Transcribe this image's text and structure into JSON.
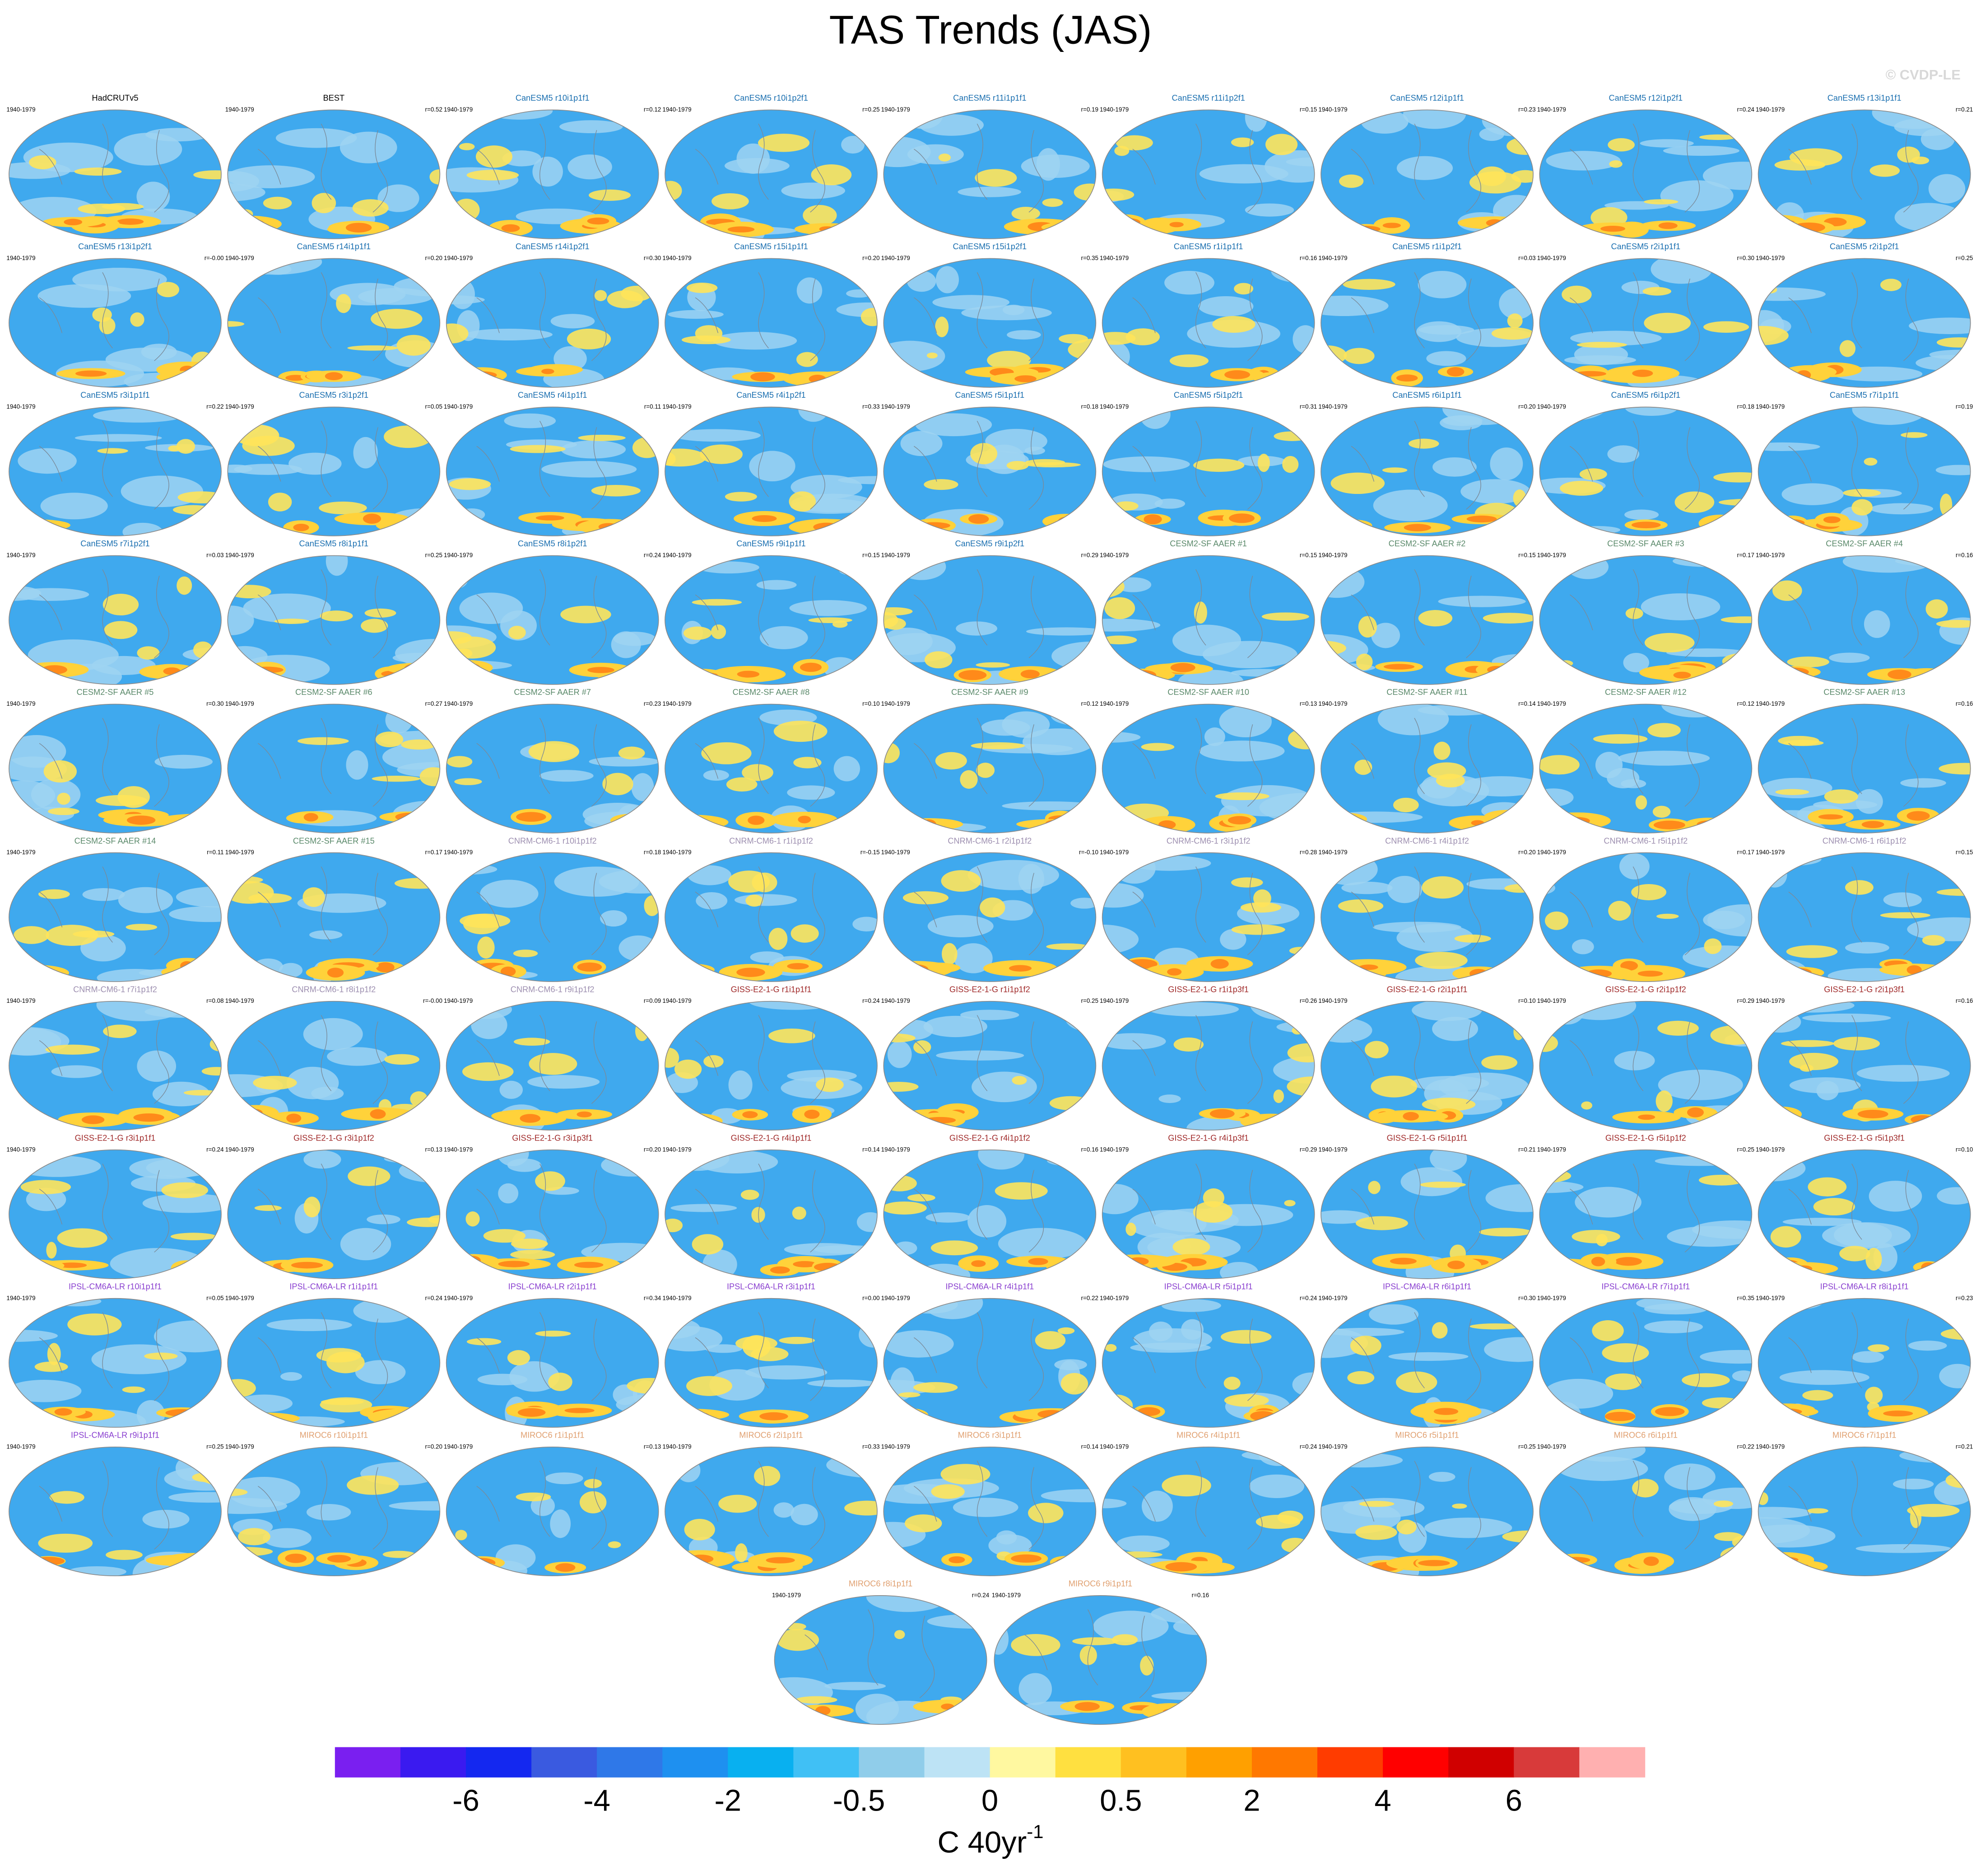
{
  "header": {
    "title": "TAS Trends (JAS)",
    "watermark": "© CVDP-LE"
  },
  "panels": [
    {
      "title": "HadCRUTv5",
      "period": "1940-1979",
      "color": "#000000"
    },
    {
      "title": "BEST",
      "period": "1940-1979",
      "r": "r=0.52",
      "color": "#000000"
    },
    {
      "title": "CanESM5 r10i1p1f1",
      "period": "1940-1979",
      "r": "r=0.12",
      "color": "#1a6fb0"
    },
    {
      "title": "CanESM5 r10i1p2f1",
      "period": "1940-1979",
      "r": "r=0.25",
      "color": "#1a6fb0"
    },
    {
      "title": "CanESM5 r11i1p1f1",
      "period": "1940-1979",
      "r": "r=0.19",
      "color": "#1a6fb0"
    },
    {
      "title": "CanESM5 r11i1p2f1",
      "period": "1940-1979",
      "r": "r=0.15",
      "color": "#1a6fb0"
    },
    {
      "title": "CanESM5 r12i1p1f1",
      "period": "1940-1979",
      "r": "r=0.23",
      "color": "#1a6fb0"
    },
    {
      "title": "CanESM5 r12i1p2f1",
      "period": "1940-1979",
      "r": "r=0.24",
      "color": "#1a6fb0"
    },
    {
      "title": "CanESM5 r13i1p1f1",
      "period": "1940-1979",
      "r": "r=0.21",
      "color": "#1a6fb0"
    },
    {
      "title": "CanESM5 r13i1p2f1",
      "period": "1940-1979",
      "r": "r=-0.00",
      "color": "#1a6fb0"
    },
    {
      "title": "CanESM5 r14i1p1f1",
      "period": "1940-1979",
      "r": "r=0.20",
      "color": "#1a6fb0"
    },
    {
      "title": "CanESM5 r14i1p2f1",
      "period": "1940-1979",
      "r": "r=0.30",
      "color": "#1a6fb0"
    },
    {
      "title": "CanESM5 r15i1p1f1",
      "period": "1940-1979",
      "r": "r=0.20",
      "color": "#1a6fb0"
    },
    {
      "title": "CanESM5 r15i1p2f1",
      "period": "1940-1979",
      "r": "r=0.35",
      "color": "#1a6fb0"
    },
    {
      "title": "CanESM5 r1i1p1f1",
      "period": "1940-1979",
      "r": "r=0.16",
      "color": "#1a6fb0"
    },
    {
      "title": "CanESM5 r1i1p2f1",
      "period": "1940-1979",
      "r": "r=0.03",
      "color": "#1a6fb0"
    },
    {
      "title": "CanESM5 r2i1p1f1",
      "period": "1940-1979",
      "r": "r=0.30",
      "color": "#1a6fb0"
    },
    {
      "title": "CanESM5 r2i1p2f1",
      "period": "1940-1979",
      "r": "r=0.25",
      "color": "#1a6fb0"
    },
    {
      "title": "CanESM5 r3i1p1f1",
      "period": "1940-1979",
      "r": "r=0.22",
      "color": "#1a6fb0"
    },
    {
      "title": "CanESM5 r3i1p2f1",
      "period": "1940-1979",
      "r": "r=0.05",
      "color": "#1a6fb0"
    },
    {
      "title": "CanESM5 r4i1p1f1",
      "period": "1940-1979",
      "r": "r=0.11",
      "color": "#1a6fb0"
    },
    {
      "title": "CanESM5 r4i1p2f1",
      "period": "1940-1979",
      "r": "r=0.33",
      "color": "#1a6fb0"
    },
    {
      "title": "CanESM5 r5i1p1f1",
      "period": "1940-1979",
      "r": "r=0.18",
      "color": "#1a6fb0"
    },
    {
      "title": "CanESM5 r5i1p2f1",
      "period": "1940-1979",
      "r": "r=0.31",
      "color": "#1a6fb0"
    },
    {
      "title": "CanESM5 r6i1p1f1",
      "period": "1940-1979",
      "r": "r=0.20",
      "color": "#1a6fb0"
    },
    {
      "title": "CanESM5 r6i1p2f1",
      "period": "1940-1979",
      "r": "r=0.18",
      "color": "#1a6fb0"
    },
    {
      "title": "CanESM5 r7i1p1f1",
      "period": "1940-1979",
      "r": "r=0.19",
      "color": "#1a6fb0"
    },
    {
      "title": "CanESM5 r7i1p2f1",
      "period": "1940-1979",
      "r": "r=0.03",
      "color": "#1a6fb0"
    },
    {
      "title": "CanESM5 r8i1p1f1",
      "period": "1940-1979",
      "r": "r=0.25",
      "color": "#1a6fb0"
    },
    {
      "title": "CanESM5 r8i1p2f1",
      "period": "1940-1979",
      "r": "r=0.24",
      "color": "#1a6fb0"
    },
    {
      "title": "CanESM5 r9i1p1f1",
      "period": "1940-1979",
      "r": "r=0.15",
      "color": "#1a6fb0"
    },
    {
      "title": "CanESM5 r9i1p2f1",
      "period": "1940-1979",
      "r": "r=0.29",
      "color": "#1a6fb0"
    },
    {
      "title": "CESM2-SF AAER #1",
      "period": "1940-1979",
      "r": "r=0.15",
      "color": "#5b8a6b"
    },
    {
      "title": "CESM2-SF AAER #2",
      "period": "1940-1979",
      "r": "r=0.15",
      "color": "#5b8a6b"
    },
    {
      "title": "CESM2-SF AAER #3",
      "period": "1940-1979",
      "r": "r=0.17",
      "color": "#5b8a6b"
    },
    {
      "title": "CESM2-SF AAER #4",
      "period": "1940-1979",
      "r": "r=0.16",
      "color": "#5b8a6b"
    },
    {
      "title": "CESM2-SF AAER #5",
      "period": "1940-1979",
      "r": "r=0.30",
      "color": "#5b8a6b"
    },
    {
      "title": "CESM2-SF AAER #6",
      "period": "1940-1979",
      "r": "r=0.27",
      "color": "#5b8a6b"
    },
    {
      "title": "CESM2-SF AAER #7",
      "period": "1940-1979",
      "r": "r=0.23",
      "color": "#5b8a6b"
    },
    {
      "title": "CESM2-SF AAER #8",
      "period": "1940-1979",
      "r": "r=0.10",
      "color": "#5b8a6b"
    },
    {
      "title": "CESM2-SF AAER #9",
      "period": "1940-1979",
      "r": "r=0.12",
      "color": "#5b8a6b"
    },
    {
      "title": "CESM2-SF AAER #10",
      "period": "1940-1979",
      "r": "r=0.13",
      "color": "#5b8a6b"
    },
    {
      "title": "CESM2-SF AAER #11",
      "period": "1940-1979",
      "r": "r=0.14",
      "color": "#5b8a6b"
    },
    {
      "title": "CESM2-SF AAER #12",
      "period": "1940-1979",
      "r": "r=0.12",
      "color": "#5b8a6b"
    },
    {
      "title": "CESM2-SF AAER #13",
      "period": "1940-1979",
      "r": "r=0.16",
      "color": "#5b8a6b"
    },
    {
      "title": "CESM2-SF AAER #14",
      "period": "1940-1979",
      "r": "r=0.11",
      "color": "#5b8a6b"
    },
    {
      "title": "CESM2-SF AAER #15",
      "period": "1940-1979",
      "r": "r=0.17",
      "color": "#5b8a6b"
    },
    {
      "title": "CNRM-CM6-1 r10i1p1f2",
      "period": "1940-1979",
      "r": "r=0.18",
      "color": "#9d8fb0"
    },
    {
      "title": "CNRM-CM6-1 r1i1p1f2",
      "period": "1940-1979",
      "r": "r=-0.15",
      "color": "#9d8fb0"
    },
    {
      "title": "CNRM-CM6-1 r2i1p1f2",
      "period": "1940-1979",
      "r": "r=-0.10",
      "color": "#9d8fb0"
    },
    {
      "title": "CNRM-CM6-1 r3i1p1f2",
      "period": "1940-1979",
      "r": "r=0.28",
      "color": "#9d8fb0"
    },
    {
      "title": "CNRM-CM6-1 r4i1p1f2",
      "period": "1940-1979",
      "r": "r=0.20",
      "color": "#9d8fb0"
    },
    {
      "title": "CNRM-CM6-1 r5i1p1f2",
      "period": "1940-1979",
      "r": "r=0.17",
      "color": "#9d8fb0"
    },
    {
      "title": "CNRM-CM6-1 r6i1p1f2",
      "period": "1940-1979",
      "r": "r=0.15",
      "color": "#9d8fb0"
    },
    {
      "title": "CNRM-CM6-1 r7i1p1f2",
      "period": "1940-1979",
      "r": "r=0.08",
      "color": "#9d8fb0"
    },
    {
      "title": "CNRM-CM6-1 r8i1p1f2",
      "period": "1940-1979",
      "r": "r=-0.00",
      "color": "#9d8fb0"
    },
    {
      "title": "CNRM-CM6-1 r9i1p1f2",
      "period": "1940-1979",
      "r": "r=0.09",
      "color": "#9d8fb0"
    },
    {
      "title": "GISS-E2-1-G r1i1p1f1",
      "period": "1940-1979",
      "r": "r=0.24",
      "color": "#a02a2a"
    },
    {
      "title": "GISS-E2-1-G r1i1p1f2",
      "period": "1940-1979",
      "r": "r=0.25",
      "color": "#a02a2a"
    },
    {
      "title": "GISS-E2-1-G r1i1p3f1",
      "period": "1940-1979",
      "r": "r=0.26",
      "color": "#a02a2a"
    },
    {
      "title": "GISS-E2-1-G r2i1p1f1",
      "period": "1940-1979",
      "r": "r=0.10",
      "color": "#a02a2a"
    },
    {
      "title": "GISS-E2-1-G r2i1p1f2",
      "period": "1940-1979",
      "r": "r=0.29",
      "color": "#a02a2a"
    },
    {
      "title": "GISS-E2-1-G r2i1p3f1",
      "period": "1940-1979",
      "r": "r=0.16",
      "color": "#a02a2a"
    },
    {
      "title": "GISS-E2-1-G r3i1p1f1",
      "period": "1940-1979",
      "r": "r=0.24",
      "color": "#a02a2a"
    },
    {
      "title": "GISS-E2-1-G r3i1p1f2",
      "period": "1940-1979",
      "r": "r=0.13",
      "color": "#a02a2a"
    },
    {
      "title": "GISS-E2-1-G r3i1p3f1",
      "period": "1940-1979",
      "r": "r=0.20",
      "color": "#a02a2a"
    },
    {
      "title": "GISS-E2-1-G r4i1p1f1",
      "period": "1940-1979",
      "r": "r=0.14",
      "color": "#a02a2a"
    },
    {
      "title": "GISS-E2-1-G r4i1p1f2",
      "period": "1940-1979",
      "r": "r=0.16",
      "color": "#a02a2a"
    },
    {
      "title": "GISS-E2-1-G r4i1p3f1",
      "period": "1940-1979",
      "r": "r=0.29",
      "color": "#a02a2a"
    },
    {
      "title": "GISS-E2-1-G r5i1p1f1",
      "period": "1940-1979",
      "r": "r=0.21",
      "color": "#a02a2a"
    },
    {
      "title": "GISS-E2-1-G r5i1p1f2",
      "period": "1940-1979",
      "r": "r=0.25",
      "color": "#a02a2a"
    },
    {
      "title": "GISS-E2-1-G r5i1p3f1",
      "period": "1940-1979",
      "r": "r=0.10",
      "color": "#a02a2a"
    },
    {
      "title": "IPSL-CM6A-LR r10i1p1f1",
      "period": "1940-1979",
      "r": "r=0.05",
      "color": "#8a40d0"
    },
    {
      "title": "IPSL-CM6A-LR r1i1p1f1",
      "period": "1940-1979",
      "r": "r=0.24",
      "color": "#8a40d0"
    },
    {
      "title": "IPSL-CM6A-LR r2i1p1f1",
      "period": "1940-1979",
      "r": "r=0.34",
      "color": "#8a40d0"
    },
    {
      "title": "IPSL-CM6A-LR r3i1p1f1",
      "period": "1940-1979",
      "r": "r=0.00",
      "color": "#8a40d0"
    },
    {
      "title": "IPSL-CM6A-LR r4i1p1f1",
      "period": "1940-1979",
      "r": "r=0.22",
      "color": "#8a40d0"
    },
    {
      "title": "IPSL-CM6A-LR r5i1p1f1",
      "period": "1940-1979",
      "r": "r=0.24",
      "color": "#8a40d0"
    },
    {
      "title": "IPSL-CM6A-LR r6i1p1f1",
      "period": "1940-1979",
      "r": "r=0.30",
      "color": "#8a40d0"
    },
    {
      "title": "IPSL-CM6A-LR r7i1p1f1",
      "period": "1940-1979",
      "r": "r=0.35",
      "color": "#8a40d0"
    },
    {
      "title": "IPSL-CM6A-LR r8i1p1f1",
      "period": "1940-1979",
      "r": "r=0.23",
      "color": "#8a40d0"
    },
    {
      "title": "IPSL-CM6A-LR r9i1p1f1",
      "period": "1940-1979",
      "r": "r=0.25",
      "color": "#8a40d0"
    },
    {
      "title": "MIROC6 r10i1p1f1",
      "period": "1940-1979",
      "r": "r=0.20",
      "color": "#e0a070"
    },
    {
      "title": "MIROC6 r1i1p1f1",
      "period": "1940-1979",
      "r": "r=0.13",
      "color": "#e0a070"
    },
    {
      "title": "MIROC6 r2i1p1f1",
      "period": "1940-1979",
      "r": "r=0.33",
      "color": "#e0a070"
    },
    {
      "title": "MIROC6 r3i1p1f1",
      "period": "1940-1979",
      "r": "r=0.14",
      "color": "#e0a070"
    },
    {
      "title": "MIROC6 r4i1p1f1",
      "period": "1940-1979",
      "r": "r=0.24",
      "color": "#e0a070"
    },
    {
      "title": "MIROC6 r5i1p1f1",
      "period": "1940-1979",
      "r": "r=0.25",
      "color": "#e0a070"
    },
    {
      "title": "MIROC6 r6i1p1f1",
      "period": "1940-1979",
      "r": "r=0.22",
      "color": "#e0a070"
    },
    {
      "title": "MIROC6 r7i1p1f1",
      "period": "1940-1979",
      "r": "r=0.21",
      "color": "#e0a070"
    },
    {
      "title": "MIROC6 r8i1p1f1",
      "period": "1940-1979",
      "r": "r=0.24",
      "color": "#e0a070"
    },
    {
      "title": "MIROC6 r9i1p1f1",
      "period": "1940-1979",
      "r": "r=0.16",
      "color": "#e0a070"
    }
  ],
  "colorbar": {
    "colors": [
      "#7a1ff0",
      "#3a1af0",
      "#1428f0",
      "#3a5ae0",
      "#2f78e8",
      "#1e90f0",
      "#08b0f0",
      "#40c0f5",
      "#90cdea",
      "#bde3f5",
      "#fff8a0",
      "#ffe040",
      "#ffc020",
      "#ffa000",
      "#ff7800",
      "#ff3c00",
      "#ff0000",
      "#d00000",
      "#d83a3a",
      "#ffb0b0"
    ],
    "labels": [
      "-6",
      "-4",
      "-2",
      "-0.5",
      "0",
      "0.5",
      "2",
      "4",
      "6"
    ],
    "units": "C 40yr",
    "units_exponent": "-1"
  }
}
